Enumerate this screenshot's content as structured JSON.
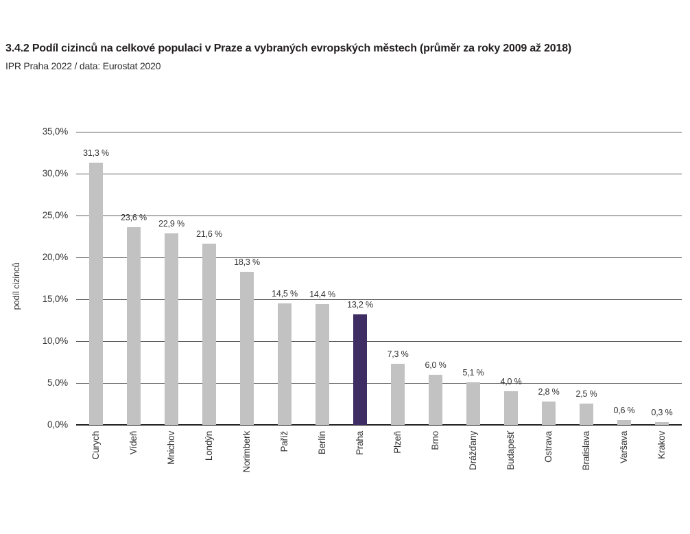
{
  "header": {
    "title": "3.4.2 Podíl cizinců na celkové populaci v Praze a vybraných evropských městech (průměr za roky 2009 až 2018)",
    "source": "IPR Praha 2022 / data: Eurostat 2020"
  },
  "chart_data": {
    "type": "bar",
    "title": "3.4.2 Podíl cizinců na celkové populaci v Praze a vybraných evropských městech (průměr za roky 2009 až 2018)",
    "subtitle": "IPR Praha 2022 / data: Eurostat 2020",
    "xlabel": "",
    "ylabel": "podíl cizinců",
    "categories": [
      "Curych",
      "Vídeň",
      "Mnichov",
      "Londýn",
      "Norimberk",
      "Paříž",
      "Berlín",
      "Praha",
      "Plzeň",
      "Brno",
      "Drážďany",
      "Budapešť",
      "Ostrava",
      "Bratislava",
      "Varšava",
      "Krakov"
    ],
    "values": [
      31.3,
      23.6,
      22.9,
      21.6,
      18.3,
      14.5,
      14.4,
      13.2,
      7.3,
      6.0,
      5.1,
      4.0,
      2.8,
      2.5,
      0.6,
      0.3
    ],
    "value_labels": [
      "31,3 %",
      "23,6 %",
      "22,9 %",
      "21,6 %",
      "18,3 %",
      "14,5 %",
      "14,4 %",
      "13,2 %",
      "7,3 %",
      "6,0 %",
      "5,1 %",
      "4,0 %",
      "2,8 %",
      "2,5 %",
      "0,6 %",
      "0,3 %"
    ],
    "highlight_category": "Praha",
    "ylim": [
      0,
      35
    ],
    "ytick_step": 5,
    "ytick_labels": [
      "0,0%",
      "5,0%",
      "10,0%",
      "15,0%",
      "20,0%",
      "25,0%",
      "30,0%",
      "35,0%"
    ],
    "grid": true,
    "legend": "none",
    "colors": {
      "bar": "#c2c2c2",
      "highlight": "#3e2d63",
      "grid": "#595959",
      "axis": "#1f1f1f",
      "text": "#333333",
      "title": "#221e1f"
    }
  }
}
